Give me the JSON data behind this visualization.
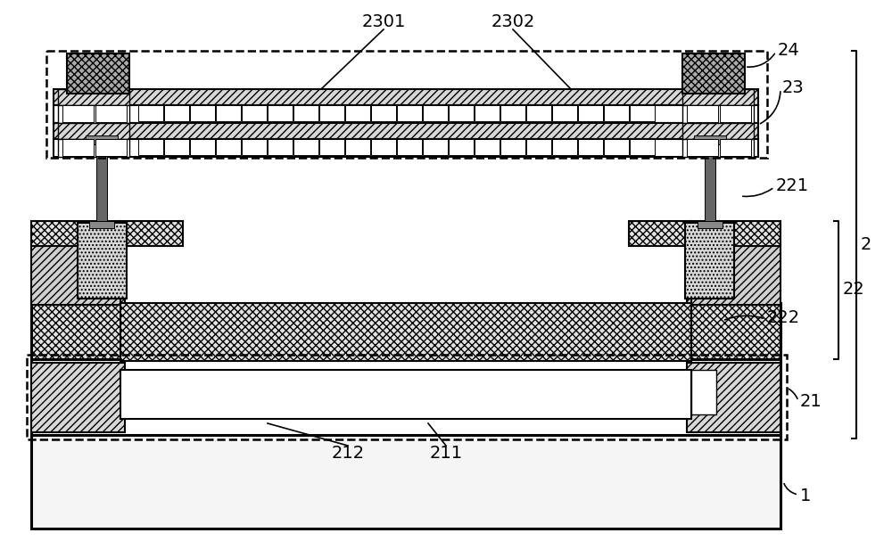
{
  "bg": "#ffffff",
  "black": "#000000",
  "white": "#ffffff",
  "gray_light": "#e8e8e8",
  "gray_cross": "#d8d8d8",
  "gray_diag": "#d0d0d0",
  "gray_dot": "#cccccc",
  "gray_dark": "#888888",
  "figsize": [
    10.0,
    6.07
  ],
  "dpi": 100,
  "fs": 14
}
